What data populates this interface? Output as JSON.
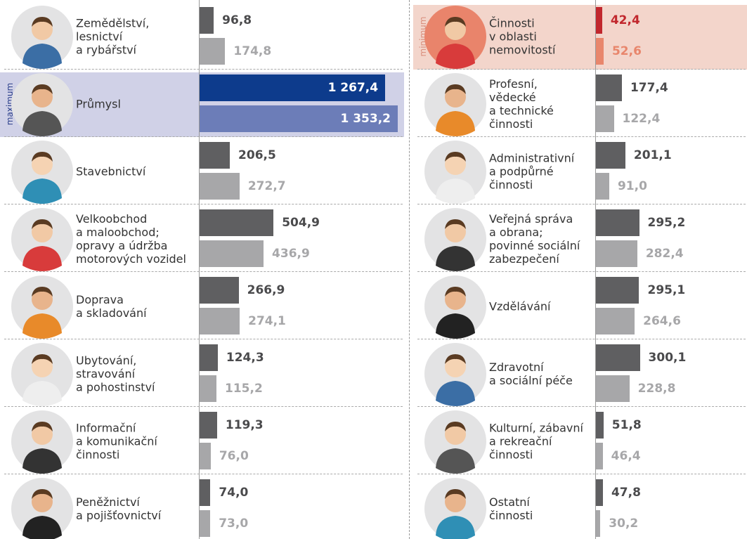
{
  "chart_data": [
    {
      "type": "bar",
      "categories": [
        "Zemědělství,\nlesnictví\na rybářství",
        "Průmysl",
        "Stavebnictví",
        "Velkoobchod\na maloobchod;\nopravy a údržba\nmotorových vozidel",
        "Doprava\na skladování",
        "Ubytování,\nstravování\na pohostinství",
        "Informační\na komunikační\nčinnosti",
        "Peněžnictví\na pojišťovnictví"
      ],
      "series": [
        {
          "color": "#5f5f61",
          "values": [
            96.8,
            1267.4,
            206.5,
            504.9,
            266.9,
            124.3,
            119.3,
            74.0
          ],
          "value_labels": [
            "96,8",
            "1 267,4",
            "206,5",
            "504,9",
            "266,9",
            "124,3",
            "119,3",
            "74,0"
          ]
        },
        {
          "color": "#a7a7a9",
          "values": [
            174.8,
            1353.2,
            272.7,
            436.9,
            274.1,
            115.2,
            76.0,
            73.0
          ],
          "value_labels": [
            "174,8",
            "1 353,2",
            "272,7",
            "436,9",
            "274,1",
            "115,2",
            "76,0",
            "73,0"
          ]
        }
      ],
      "highlight": {
        "index": 1,
        "label": "maximum",
        "colors": [
          "#0d3b8c",
          "#6c7db8"
        ],
        "label_colors": [
          "#ffffff",
          "#ffffff"
        ],
        "background": "#d0d1e7",
        "tag_color": "#2b3f8a"
      }
    },
    {
      "type": "bar",
      "categories": [
        "Činnosti\nv oblasti\nnemovitostí",
        "Profesní,\nvědecké\na technické\nčinnosti",
        "Administrativní\na podpůrné\nčinnosti",
        "Veřejná správa\na obrana;\npovinné sociální\nzabezpečení",
        "Vzdělávání",
        "Zdravotní\na sociální péče",
        "Kulturní, zábavní\na rekreační\nčinnosti",
        "Ostatní\nčinnosti"
      ],
      "series": [
        {
          "color": "#5f5f61",
          "values": [
            42.4,
            177.4,
            201.1,
            295.2,
            295.1,
            300.1,
            51.8,
            47.8
          ],
          "value_labels": [
            "42,4",
            "177,4",
            "201,1",
            "295,2",
            "295,1",
            "300,1",
            "51,8",
            "47,8"
          ]
        },
        {
          "color": "#a7a7a9",
          "values": [
            52.6,
            122.4,
            91.0,
            282.4,
            264.6,
            228.8,
            46.4,
            30.2
          ],
          "value_labels": [
            "52,6",
            "122,4",
            "91,0",
            "282,4",
            "264,6",
            "228,8",
            "46,4",
            "30,2"
          ]
        }
      ],
      "highlight": {
        "index": 0,
        "label": "minimum",
        "colors": [
          "#c1272d",
          "#e8866c"
        ],
        "label_colors": [
          "#c1272d",
          "#e8866c"
        ],
        "background": "#f3d5cb",
        "tag_color": "#d98c7a"
      }
    }
  ]
}
